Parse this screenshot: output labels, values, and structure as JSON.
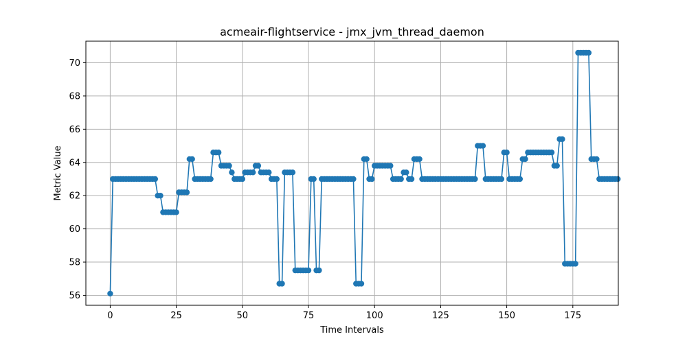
{
  "chart_data": {
    "type": "line",
    "title": "acmeair-flightservice - jmx_jvm_thread_daemon",
    "xlabel": "Time Intervals",
    "ylabel": "Metric Value",
    "xlim": [
      -9.2,
      192.2
    ],
    "ylim": [
      55.4,
      71.3
    ],
    "xticks": [
      0,
      25,
      50,
      75,
      100,
      125,
      150,
      175
    ],
    "yticks": [
      56,
      58,
      60,
      62,
      64,
      66,
      68,
      70
    ],
    "grid": true,
    "series": [
      {
        "color": "#1f77b4",
        "marker": "circle",
        "values": [
          56.1,
          63,
          63,
          63,
          63,
          63,
          63,
          63,
          63,
          63,
          63,
          63,
          63,
          63,
          63,
          63,
          63,
          63,
          62,
          62,
          61,
          61,
          61,
          61,
          61,
          61,
          62.2,
          62.2,
          62.2,
          62.2,
          64.2,
          64.2,
          63,
          63,
          63,
          63,
          63,
          63,
          63,
          64.6,
          64.6,
          64.6,
          63.8,
          63.8,
          63.8,
          63.8,
          63.4,
          63,
          63,
          63,
          63,
          63.4,
          63.4,
          63.4,
          63.4,
          63.8,
          63.8,
          63.4,
          63.4,
          63.4,
          63.4,
          63,
          63,
          63,
          56.7,
          56.7,
          63.4,
          63.4,
          63.4,
          63.4,
          57.5,
          57.5,
          57.5,
          57.5,
          57.5,
          57.5,
          63,
          63,
          57.5,
          57.5,
          63,
          63,
          63,
          63,
          63,
          63,
          63,
          63,
          63,
          63,
          63,
          63,
          63,
          56.7,
          56.7,
          56.7,
          64.2,
          64.2,
          63,
          63,
          63.8,
          63.8,
          63.8,
          63.8,
          63.8,
          63.8,
          63.8,
          63,
          63,
          63,
          63,
          63.4,
          63.4,
          63,
          63,
          64.2,
          64.2,
          64.2,
          63,
          63,
          63,
          63,
          63,
          63,
          63,
          63,
          63,
          63,
          63,
          63,
          63,
          63,
          63,
          63,
          63,
          63,
          63,
          63,
          63,
          65,
          65,
          65,
          63,
          63,
          63,
          63,
          63,
          63,
          63,
          64.6,
          64.6,
          63,
          63,
          63,
          63,
          63,
          64.2,
          64.2,
          64.6,
          64.6,
          64.6,
          64.6,
          64.6,
          64.6,
          64.6,
          64.6,
          64.6,
          64.6,
          63.8,
          63.8,
          65.4,
          65.4,
          57.9,
          57.9,
          57.9,
          57.9,
          57.9,
          70.6,
          70.6,
          70.6,
          70.6,
          70.6,
          64.2,
          64.2,
          64.2,
          63,
          63,
          63,
          63,
          63,
          63,
          63,
          63
        ]
      }
    ]
  }
}
